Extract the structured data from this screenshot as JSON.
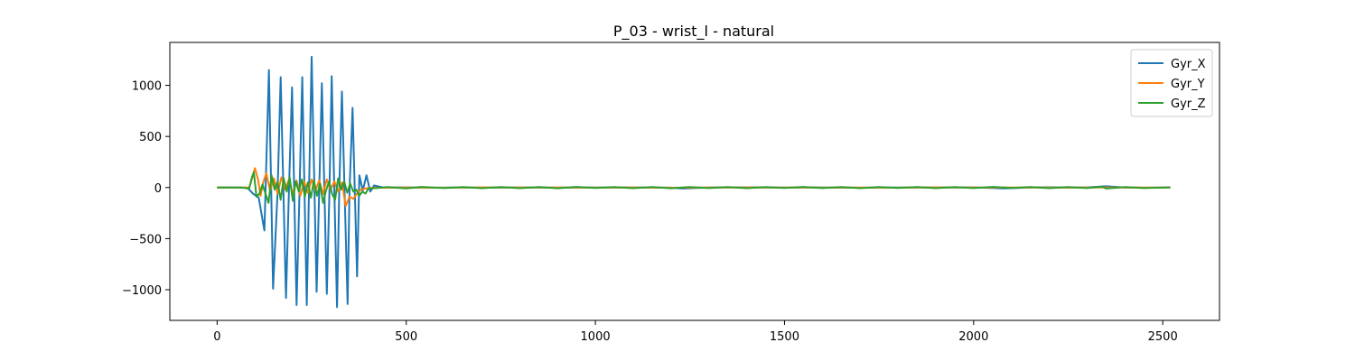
{
  "chart_data": {
    "type": "line",
    "title": "P_03 - wrist_l - natural",
    "xlabel": "",
    "ylabel": "",
    "xlim": [
      -125,
      2650
    ],
    "ylim": [
      -1300,
      1420
    ],
    "xticks": [
      0,
      500,
      1000,
      1500,
      2000,
      2500
    ],
    "yticks": [
      -1000,
      -500,
      0,
      500,
      1000
    ],
    "grid": false,
    "legend_position": "top-right",
    "series": [
      {
        "name": "Gyr_X",
        "color": "#1f77b4",
        "points": [
          [
            0,
            0
          ],
          [
            40,
            1
          ],
          [
            80,
            -2
          ],
          [
            95,
            -60
          ],
          [
            110,
            -100
          ],
          [
            125,
            -420
          ],
          [
            137,
            1150
          ],
          [
            148,
            -990
          ],
          [
            160,
            -40
          ],
          [
            168,
            1080
          ],
          [
            182,
            -1080
          ],
          [
            190,
            -20
          ],
          [
            198,
            980
          ],
          [
            210,
            -1150
          ],
          [
            218,
            -30
          ],
          [
            225,
            1080
          ],
          [
            237,
            -1150
          ],
          [
            243,
            -20
          ],
          [
            250,
            1280
          ],
          [
            263,
            -1020
          ],
          [
            270,
            -20
          ],
          [
            277,
            1020
          ],
          [
            290,
            -1040
          ],
          [
            297,
            -30
          ],
          [
            303,
            1090
          ],
          [
            317,
            -1170
          ],
          [
            323,
            -10
          ],
          [
            330,
            940
          ],
          [
            345,
            -1140
          ],
          [
            350,
            -30
          ],
          [
            358,
            780
          ],
          [
            370,
            -870
          ],
          [
            376,
            120
          ],
          [
            385,
            -30
          ],
          [
            395,
            120
          ],
          [
            405,
            -40
          ],
          [
            415,
            20
          ],
          [
            440,
            0
          ],
          [
            500,
            2
          ],
          [
            560,
            -2
          ],
          [
            620,
            1
          ],
          [
            700,
            -2
          ],
          [
            800,
            1
          ],
          [
            900,
            -1
          ],
          [
            1000,
            0
          ],
          [
            1100,
            1
          ],
          [
            1200,
            -1
          ],
          [
            1230,
            -10
          ],
          [
            1300,
            0
          ],
          [
            1400,
            2
          ],
          [
            1500,
            -1
          ],
          [
            1600,
            1
          ],
          [
            1700,
            -2
          ],
          [
            1800,
            1
          ],
          [
            1900,
            0
          ],
          [
            2000,
            2
          ],
          [
            2080,
            -8
          ],
          [
            2150,
            1
          ],
          [
            2200,
            3
          ],
          [
            2250,
            -1
          ],
          [
            2300,
            2
          ],
          [
            2350,
            12
          ],
          [
            2400,
            0
          ],
          [
            2450,
            -2
          ],
          [
            2520,
            0
          ]
        ]
      },
      {
        "name": "Gyr_Y",
        "color": "#ff7f0e",
        "points": [
          [
            0,
            0
          ],
          [
            60,
            0
          ],
          [
            85,
            0
          ],
          [
            95,
            120
          ],
          [
            100,
            190
          ],
          [
            108,
            80
          ],
          [
            115,
            -80
          ],
          [
            122,
            50
          ],
          [
            130,
            140
          ],
          [
            140,
            -30
          ],
          [
            150,
            90
          ],
          [
            160,
            -60
          ],
          [
            170,
            100
          ],
          [
            180,
            -20
          ],
          [
            190,
            80
          ],
          [
            200,
            -60
          ],
          [
            210,
            70
          ],
          [
            220,
            -80
          ],
          [
            230,
            60
          ],
          [
            240,
            -50
          ],
          [
            250,
            80
          ],
          [
            260,
            -30
          ],
          [
            270,
            70
          ],
          [
            280,
            -60
          ],
          [
            290,
            80
          ],
          [
            300,
            -20
          ],
          [
            310,
            60
          ],
          [
            320,
            -40
          ],
          [
            330,
            50
          ],
          [
            340,
            -180
          ],
          [
            350,
            -90
          ],
          [
            360,
            -110
          ],
          [
            370,
            -60
          ],
          [
            380,
            -20
          ],
          [
            390,
            -10
          ],
          [
            400,
            -5
          ],
          [
            420,
            -2
          ],
          [
            500,
            1
          ],
          [
            600,
            -2
          ],
          [
            700,
            2
          ],
          [
            800,
            0
          ],
          [
            900,
            1
          ],
          [
            1000,
            -1
          ],
          [
            1100,
            1
          ],
          [
            1200,
            -2
          ],
          [
            1300,
            1
          ],
          [
            1400,
            0
          ],
          [
            1500,
            1
          ],
          [
            1600,
            -1
          ],
          [
            1700,
            1
          ],
          [
            1800,
            -2
          ],
          [
            1900,
            2
          ],
          [
            2000,
            0
          ],
          [
            2100,
            1
          ],
          [
            2200,
            -1
          ],
          [
            2300,
            1
          ],
          [
            2400,
            0
          ],
          [
            2520,
            0
          ]
        ]
      },
      {
        "name": "Gyr_Z",
        "color": "#2ca02c",
        "points": [
          [
            0,
            0
          ],
          [
            60,
            0
          ],
          [
            85,
            -10
          ],
          [
            92,
            100
          ],
          [
            97,
            150
          ],
          [
            104,
            -90
          ],
          [
            112,
            -60
          ],
          [
            120,
            30
          ],
          [
            128,
            -60
          ],
          [
            136,
            -150
          ],
          [
            144,
            120
          ],
          [
            152,
            -20
          ],
          [
            160,
            60
          ],
          [
            168,
            -120
          ],
          [
            176,
            90
          ],
          [
            184,
            -40
          ],
          [
            192,
            100
          ],
          [
            200,
            -130
          ],
          [
            208,
            60
          ],
          [
            216,
            -40
          ],
          [
            224,
            80
          ],
          [
            232,
            -90
          ],
          [
            240,
            50
          ],
          [
            248,
            -100
          ],
          [
            256,
            70
          ],
          [
            264,
            -80
          ],
          [
            272,
            40
          ],
          [
            280,
            -150
          ],
          [
            288,
            -30
          ],
          [
            296,
            60
          ],
          [
            304,
            -60
          ],
          [
            312,
            -120
          ],
          [
            320,
            90
          ],
          [
            328,
            -20
          ],
          [
            336,
            60
          ],
          [
            344,
            -50
          ],
          [
            352,
            40
          ],
          [
            360,
            -40
          ],
          [
            368,
            -20
          ],
          [
            376,
            -80
          ],
          [
            384,
            -40
          ],
          [
            392,
            -60
          ],
          [
            400,
            -10
          ],
          [
            420,
            -5
          ],
          [
            450,
            5
          ],
          [
            500,
            -8
          ],
          [
            540,
            6
          ],
          [
            600,
            -5
          ],
          [
            650,
            4
          ],
          [
            700,
            -6
          ],
          [
            750,
            5
          ],
          [
            800,
            -6
          ],
          [
            850,
            4
          ],
          [
            900,
            -7
          ],
          [
            950,
            6
          ],
          [
            1000,
            -4
          ],
          [
            1050,
            5
          ],
          [
            1100,
            -6
          ],
          [
            1150,
            4
          ],
          [
            1200,
            -7
          ],
          [
            1250,
            5
          ],
          [
            1300,
            -5
          ],
          [
            1350,
            4
          ],
          [
            1400,
            -6
          ],
          [
            1450,
            5
          ],
          [
            1500,
            -4
          ],
          [
            1550,
            6
          ],
          [
            1600,
            -5
          ],
          [
            1650,
            4
          ],
          [
            1700,
            -6
          ],
          [
            1750,
            5
          ],
          [
            1800,
            -4
          ],
          [
            1850,
            5
          ],
          [
            1900,
            -6
          ],
          [
            1950,
            4
          ],
          [
            2000,
            -5
          ],
          [
            2050,
            6
          ],
          [
            2100,
            -4
          ],
          [
            2150,
            5
          ],
          [
            2200,
            -6
          ],
          [
            2250,
            4
          ],
          [
            2300,
            -5
          ],
          [
            2340,
            8
          ],
          [
            2350,
            -10
          ],
          [
            2400,
            4
          ],
          [
            2450,
            -5
          ],
          [
            2520,
            2
          ]
        ]
      }
    ]
  }
}
